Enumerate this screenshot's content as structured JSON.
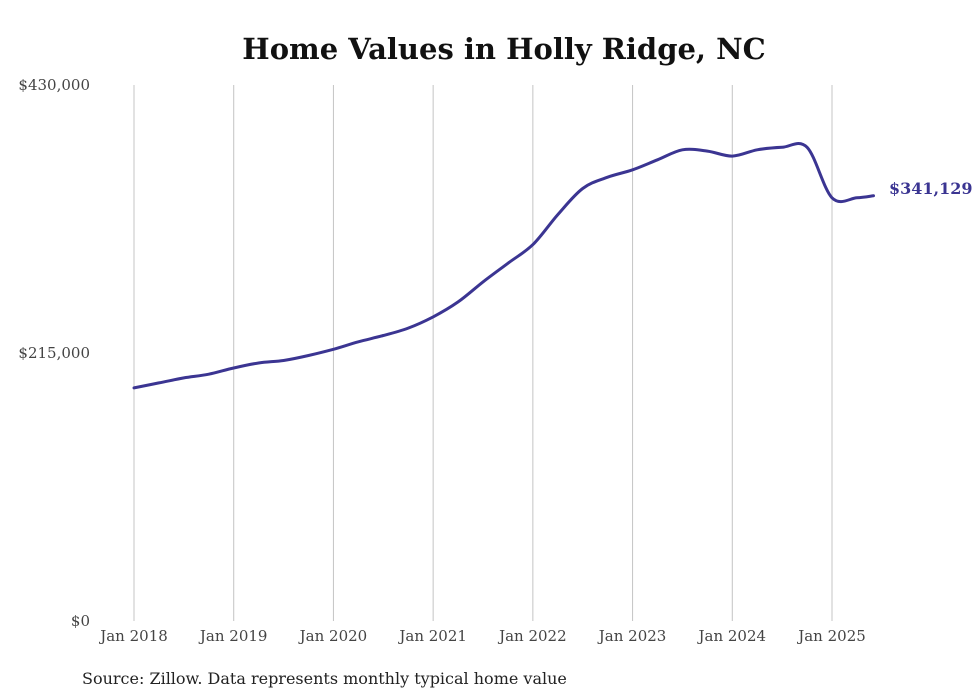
{
  "chart_data": {
    "type": "line",
    "title": "Home Values in Holly Ridge, NC",
    "xlabel": "",
    "ylabel": "",
    "ylim": [
      0,
      430000
    ],
    "yticks": [
      0,
      215000,
      430000
    ],
    "ytick_labels": [
      "$0",
      "$215,000",
      "$430,000"
    ],
    "xlim": [
      "2018-01",
      "2025-07"
    ],
    "xticks": [
      "2018-01",
      "2019-01",
      "2020-01",
      "2021-01",
      "2022-01",
      "2023-01",
      "2024-01",
      "2025-01"
    ],
    "xtick_labels": [
      "Jan 2018",
      "Jan 2019",
      "Jan 2020",
      "Jan 2021",
      "Jan 2022",
      "Jan 2023",
      "Jan 2024",
      "Jan 2025"
    ],
    "grid": "vertical",
    "legend": "none",
    "end_label": "$341,129",
    "source": "Source: Zillow. Data represents monthly typical home value",
    "colors": {
      "line": "#3b3592",
      "grid": "#c4c4c4"
    },
    "series": [
      {
        "name": "",
        "x": [
          "2018-01",
          "2018-04",
          "2018-07",
          "2018-10",
          "2019-01",
          "2019-04",
          "2019-07",
          "2019-10",
          "2020-01",
          "2020-04",
          "2020-07",
          "2020-10",
          "2021-01",
          "2021-04",
          "2021-07",
          "2021-10",
          "2022-01",
          "2022-04",
          "2022-07",
          "2022-10",
          "2023-01",
          "2023-04",
          "2023-07",
          "2023-10",
          "2024-01",
          "2024-04",
          "2024-07",
          "2024-10",
          "2025-01",
          "2025-04",
          "2025-06"
        ],
        "y": [
          187000,
          191000,
          195000,
          198000,
          203000,
          207000,
          209000,
          213000,
          218000,
          224000,
          229000,
          235000,
          244000,
          256000,
          272000,
          287000,
          302000,
          326000,
          347000,
          356000,
          362000,
          370000,
          378000,
          377000,
          373000,
          378000,
          380000,
          380000,
          339500,
          339500,
          341129
        ]
      }
    ]
  }
}
